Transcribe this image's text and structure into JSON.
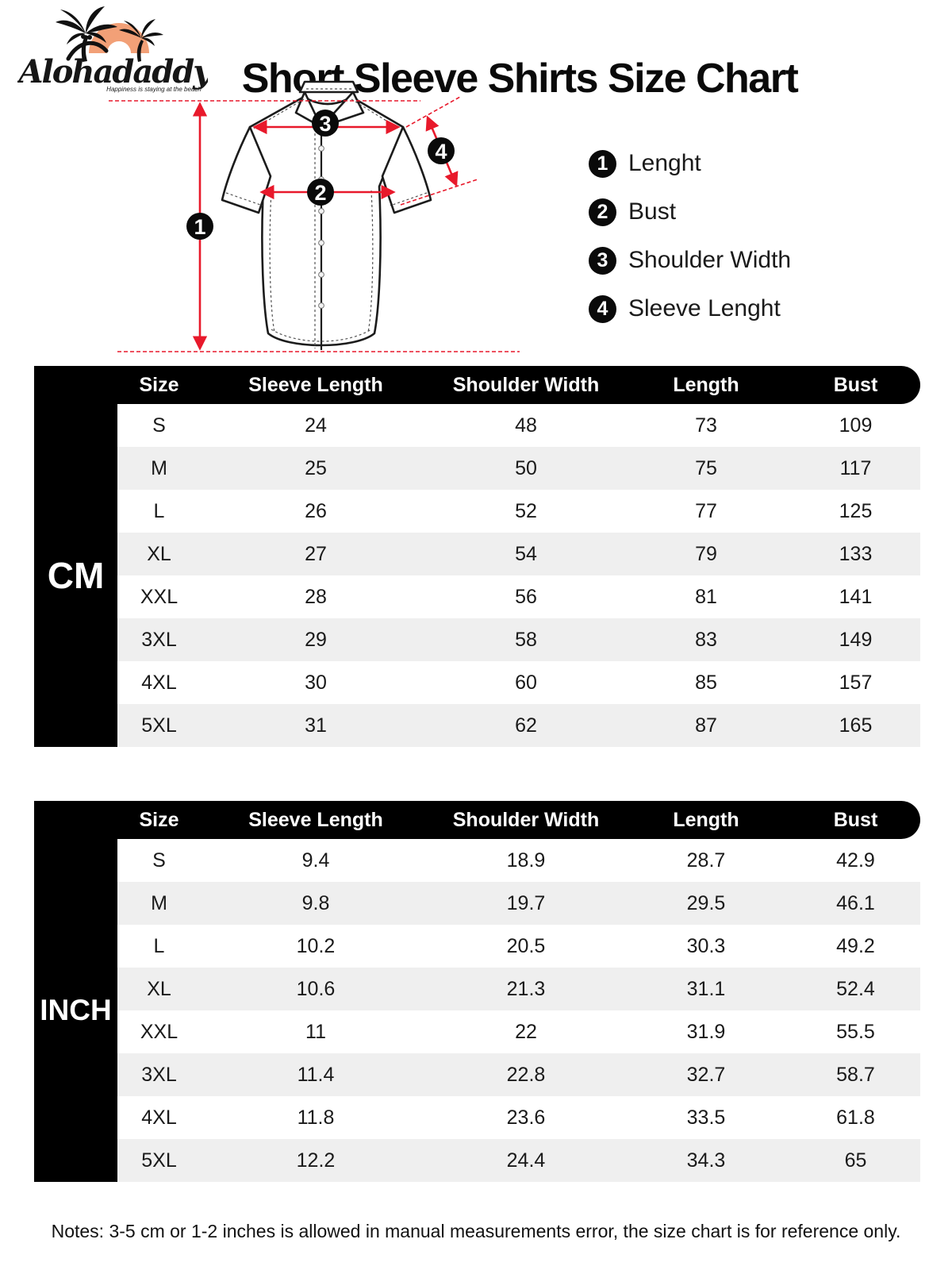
{
  "brand": {
    "name": "Alohadaddy",
    "tagline": "Happiness is staying at the beach"
  },
  "title": "Short Sleeve Shirts Size Chart",
  "legend": [
    {
      "num": "1",
      "label": "Lenght"
    },
    {
      "num": "2",
      "label": "Bust"
    },
    {
      "num": "3",
      "label": "Shoulder Width"
    },
    {
      "num": "4",
      "label": "Sleeve Lenght"
    }
  ],
  "diagram": {
    "markers": [
      "1",
      "2",
      "3",
      "4"
    ]
  },
  "columns": [
    "Size",
    "Sleeve Length",
    "Shoulder Width",
    "Length",
    "Bust"
  ],
  "cm_table": {
    "unit": "CM",
    "rows": [
      [
        "S",
        "24",
        "48",
        "73",
        "109"
      ],
      [
        "M",
        "25",
        "50",
        "75",
        "117"
      ],
      [
        "L",
        "26",
        "52",
        "77",
        "125"
      ],
      [
        "XL",
        "27",
        "54",
        "79",
        "133"
      ],
      [
        "XXL",
        "28",
        "56",
        "81",
        "141"
      ],
      [
        "3XL",
        "29",
        "58",
        "83",
        "149"
      ],
      [
        "4XL",
        "30",
        "60",
        "85",
        "157"
      ],
      [
        "5XL",
        "31",
        "62",
        "87",
        "165"
      ]
    ]
  },
  "inch_table": {
    "unit": "INCH",
    "rows": [
      [
        "S",
        "9.4",
        "18.9",
        "28.7",
        "42.9"
      ],
      [
        "M",
        "9.8",
        "19.7",
        "29.5",
        "46.1"
      ],
      [
        "L",
        "10.2",
        "20.5",
        "30.3",
        "49.2"
      ],
      [
        "XL",
        "10.6",
        "21.3",
        "31.1",
        "52.4"
      ],
      [
        "XXL",
        "11",
        "22",
        "31.9",
        "55.5"
      ],
      [
        "3XL",
        "11.4",
        "22.8",
        "32.7",
        "58.7"
      ],
      [
        "4XL",
        "11.8",
        "23.6",
        "33.5",
        "61.8"
      ],
      [
        "5XL",
        "12.2",
        "24.4",
        "34.3",
        "65"
      ]
    ]
  },
  "note": "Notes: 3-5 cm or 1-2 inches is allowed in manual measurements error, the size chart is for reference only.",
  "colors": {
    "accent_red": "#e8192b",
    "logo_orange": "#f2a077",
    "row_alt": "#efefef",
    "table_black": "#000000"
  }
}
